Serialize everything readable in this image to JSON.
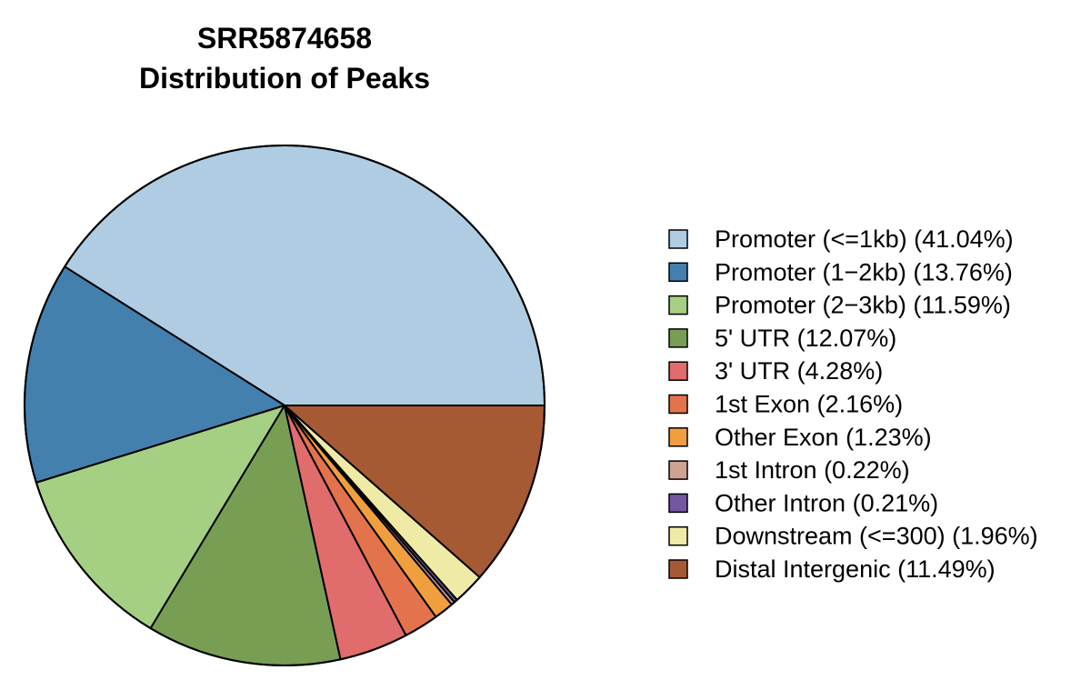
{
  "chart_data": {
    "type": "pie",
    "title_lines": [
      "SRR5874658",
      "Distribution of Peaks"
    ],
    "slices": [
      {
        "label": "Promoter (<=1kb) (41.04%)",
        "value": 41.04,
        "color": "#AFCCE2"
      },
      {
        "label": "Promoter (1−2kb) (13.76%)",
        "value": 13.76,
        "color": "#4380AE"
      },
      {
        "label": "Promoter (2−3kb) (11.59%)",
        "value": 11.59,
        "color": "#A5D083"
      },
      {
        "label": "5' UTR (12.07%)",
        "value": 12.07,
        "color": "#789E54"
      },
      {
        "label": "3' UTR (4.28%)",
        "value": 4.28,
        "color": "#E06C6B"
      },
      {
        "label": "1st Exon (2.16%)",
        "value": 2.16,
        "color": "#E2734C"
      },
      {
        "label": "Other Exon (1.23%)",
        "value": 1.23,
        "color": "#F09F3E"
      },
      {
        "label": "1st Intron (0.22%)",
        "value": 0.22,
        "color": "#CFA293"
      },
      {
        "label": "Other Intron (0.21%)",
        "value": 0.21,
        "color": "#7556A1"
      },
      {
        "label": "Downstream (<=300) (1.96%)",
        "value": 1.96,
        "color": "#EFEBA7"
      },
      {
        "label": "Distal Intergenic (11.49%)",
        "value": 11.49,
        "color": "#A55A34"
      }
    ],
    "start_angle": "3 o'clock",
    "direction": "counterclockwise",
    "legend_position": "right"
  }
}
